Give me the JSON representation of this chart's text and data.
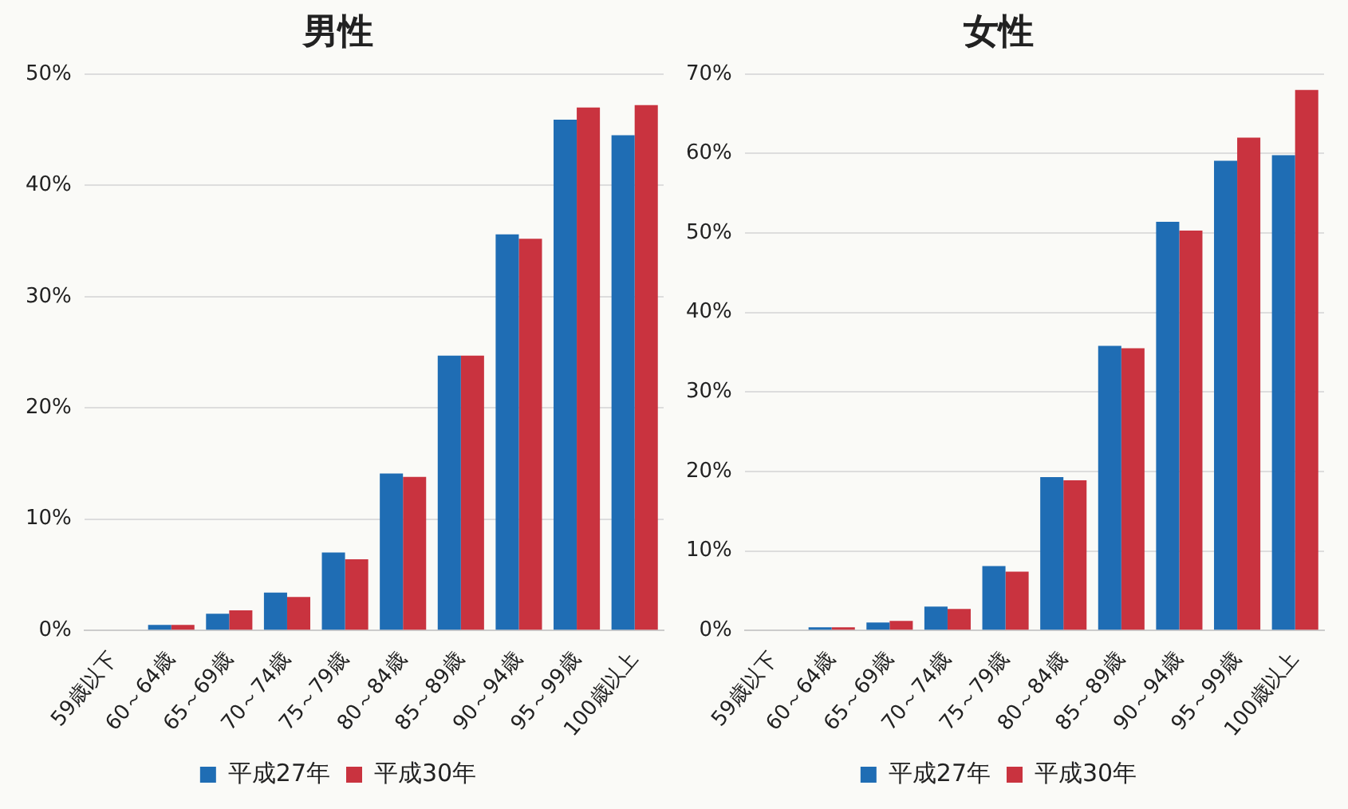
{
  "chart_data": [
    {
      "type": "bar",
      "title": "男性",
      "categories": [
        "59歳以下",
        "60～64歳",
        "65～69歳",
        "70～74歳",
        "75～79歳",
        "80～84歳",
        "85～89歳",
        "90～94歳",
        "95～99歳",
        "100歳以上"
      ],
      "series": [
        {
          "name": "平成27年",
          "color": "#1f6db4",
          "values": [
            0,
            0.5,
            1.5,
            3.4,
            7.0,
            14.1,
            24.7,
            35.6,
            45.9,
            44.5
          ]
        },
        {
          "name": "平成30年",
          "color": "#c9333f",
          "values": [
            0,
            0.5,
            1.8,
            3.0,
            6.4,
            13.8,
            24.7,
            35.2,
            47.0,
            47.2
          ]
        }
      ],
      "ylim": [
        0,
        50
      ],
      "yticks": [
        {
          "value": 0,
          "label": "0%"
        },
        {
          "value": 10,
          "label": "10%"
        },
        {
          "value": 20,
          "label": "20%"
        },
        {
          "value": 30,
          "label": "30%"
        },
        {
          "value": 40,
          "label": "40%"
        },
        {
          "value": 50,
          "label": "50%"
        }
      ],
      "grid": "y",
      "legend": "bottom"
    },
    {
      "type": "bar",
      "title": "女性",
      "categories": [
        "59歳以下",
        "60～64歳",
        "65～69歳",
        "70～74歳",
        "75～79歳",
        "80～84歳",
        "85～89歳",
        "90～94歳",
        "95～99歳",
        "100歳以上"
      ],
      "series": [
        {
          "name": "平成27年",
          "color": "#1f6db4",
          "values": [
            0,
            0.4,
            1.0,
            3.0,
            8.1,
            19.3,
            35.8,
            51.4,
            59.1,
            59.8
          ]
        },
        {
          "name": "平成30年",
          "color": "#c9333f",
          "values": [
            0,
            0.4,
            1.2,
            2.7,
            7.4,
            18.9,
            35.5,
            50.3,
            62.0,
            68.0
          ]
        }
      ],
      "ylim": [
        0,
        70
      ],
      "yticks": [
        {
          "value": 0,
          "label": "0%"
        },
        {
          "value": 10,
          "label": "10%"
        },
        {
          "value": 20,
          "label": "20%"
        },
        {
          "value": 30,
          "label": "30%"
        },
        {
          "value": 40,
          "label": "40%"
        },
        {
          "value": 50,
          "label": "50%"
        },
        {
          "value": 60,
          "label": "60%"
        },
        {
          "value": 70,
          "label": "70%"
        }
      ],
      "grid": "y",
      "legend": "bottom"
    }
  ]
}
